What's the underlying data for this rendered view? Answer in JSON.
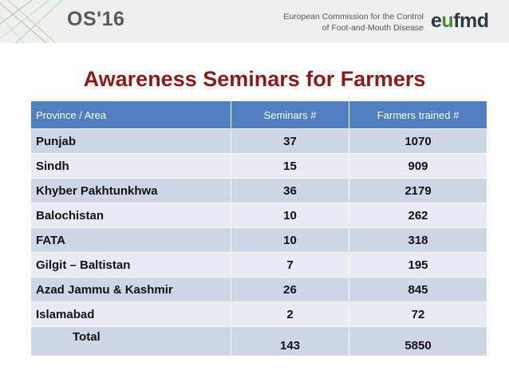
{
  "header": {
    "brand": "OS'16",
    "org_line1": "European Commission for the Control",
    "org_line2": "of Foot-and-Mouth Disease",
    "logo_pre": "e",
    "logo_mid": "u",
    "logo_post": "fmd"
  },
  "title": "Awareness Seminars for Farmers",
  "table": {
    "headers": [
      "Province / Area",
      "Seminars #",
      "Farmers trained #"
    ],
    "rows": [
      [
        "Punjab",
        "37",
        "1070"
      ],
      [
        "Sindh",
        "15",
        "909"
      ],
      [
        "Khyber Pakhtunkhwa",
        "36",
        "2179"
      ],
      [
        "Balochistan",
        "10",
        "262"
      ],
      [
        "FATA",
        "10",
        "318"
      ],
      [
        "Gilgit – Baltistan",
        "7",
        "195"
      ],
      [
        "Azad Jammu & Kashmir",
        "26",
        "845"
      ],
      [
        "Islamabad",
        "2",
        "72"
      ]
    ],
    "total": [
      "Total",
      "143",
      "5850"
    ]
  },
  "colors": {
    "title": "#8b1a1a",
    "header_fill": "#4f7fbf",
    "row_dark": "#cfd6e8",
    "row_light": "#e8ebf4",
    "logo_green": "#4c8a2e"
  }
}
